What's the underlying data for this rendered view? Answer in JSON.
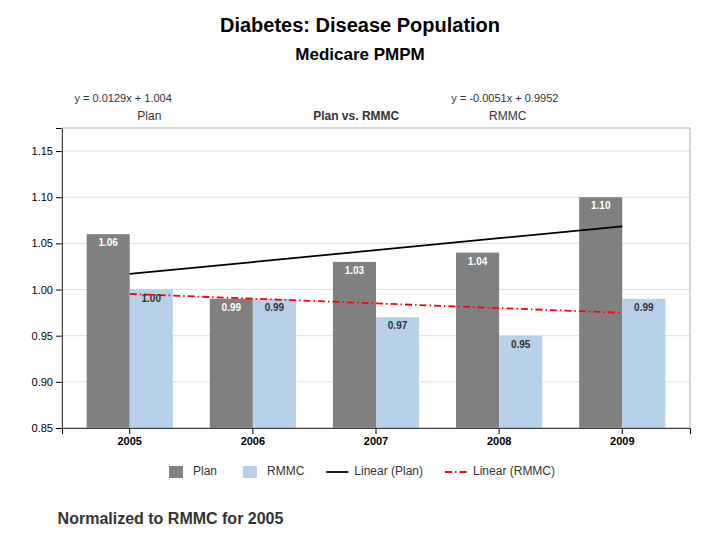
{
  "chart_data": {
    "type": "bar",
    "title": "Diabetes: Disease Population",
    "subtitle": "Medicare PMPM",
    "annotations": [
      "y = 0.0129x + 1.004",
      "y = -0.0051x + 0.9952",
      "Plan",
      "Plan vs. RMMC",
      "RMMC",
      "Normalized to RMMC for 2005"
    ],
    "categories": [
      "2005",
      "2006",
      "2007",
      "2008",
      "2009"
    ],
    "series": [
      {
        "name": "Plan",
        "type": "bar",
        "color": "#808080",
        "values": [
          1.06,
          0.99,
          1.03,
          1.04,
          1.1
        ],
        "value_labels": [
          "1.06",
          "0.99",
          "1.03",
          "1.04",
          "1.10"
        ]
      },
      {
        "name": "RMMC",
        "type": "bar",
        "color": "#b8d0e8",
        "values": [
          1.0,
          0.99,
          0.97,
          0.95,
          0.99
        ],
        "value_labels": [
          "1.00",
          "0.99",
          "0.97",
          "0.95",
          "0.99"
        ]
      },
      {
        "name": "Linear (Plan)",
        "type": "line",
        "color": "#000000",
        "line_style": "solid",
        "values": [
          1.0169,
          1.0298,
          1.0427,
          1.0556,
          1.0685
        ]
      },
      {
        "name": "Linear (RMMC)",
        "type": "line",
        "color": "#ff0000",
        "line_style": "dashdot",
        "values": [
          0.9952,
          0.9901,
          0.985,
          0.9799,
          0.9748
        ]
      }
    ],
    "ylim": [
      0.85,
      1.175
    ],
    "yticks": [
      0.85,
      {
        "value": 0.9,
        "label": "0.90"
      },
      0.95,
      {
        "value": 1.0,
        "label": "1.00"
      },
      1.05,
      {
        "value": 1.1,
        "label": "1.10"
      },
      1.15
    ],
    "grid": true,
    "legend": "bottom",
    "data_labels": true
  }
}
